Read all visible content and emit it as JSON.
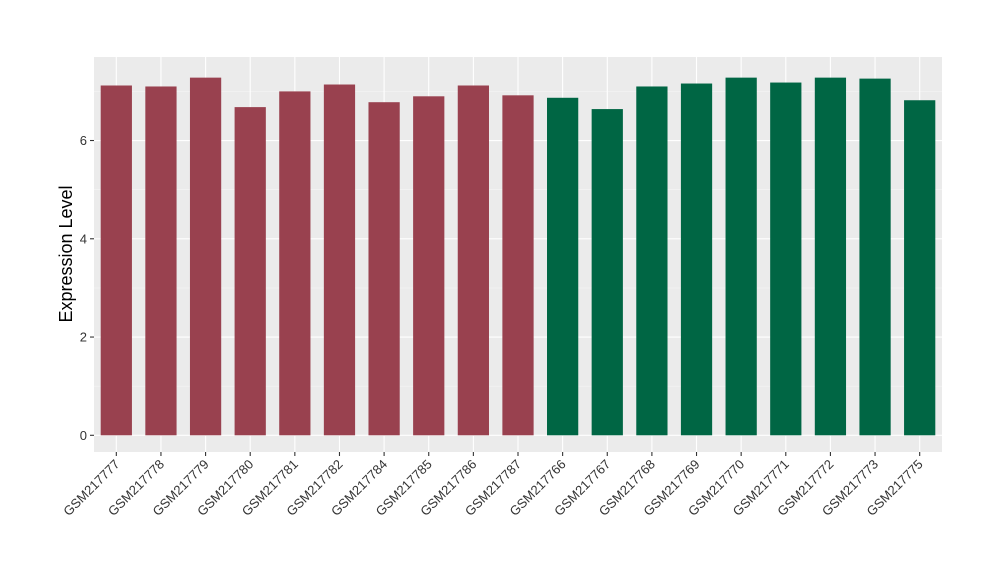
{
  "chart_data": {
    "type": "bar",
    "title": "",
    "xlabel": "",
    "ylabel": "Expression Level",
    "ylim": [
      -0.34,
      7.7
    ],
    "yticks": [
      0,
      2,
      4,
      6
    ],
    "ytick_labels": [
      "0",
      "2",
      "4",
      "6"
    ],
    "grid": true,
    "legend": "none",
    "categories": [
      "GSM217777",
      "GSM217778",
      "GSM217779",
      "GSM217780",
      "GSM217781",
      "GSM217782",
      "GSM217784",
      "GSM217785",
      "GSM217786",
      "GSM217787",
      "GSM217766",
      "GSM217767",
      "GSM217768",
      "GSM217769",
      "GSM217770",
      "GSM217771",
      "GSM217772",
      "GSM217773",
      "GSM217775"
    ],
    "values": [
      7.12,
      7.1,
      7.28,
      6.68,
      7.0,
      7.14,
      6.78,
      6.9,
      7.12,
      6.92,
      6.87,
      6.64,
      7.1,
      7.16,
      7.28,
      7.18,
      7.28,
      7.26,
      6.82
    ],
    "bar_colors": [
      "#99414f",
      "#99414f",
      "#99414f",
      "#99414f",
      "#99414f",
      "#99414f",
      "#99414f",
      "#99414f",
      "#99414f",
      "#99414f",
      "#006644",
      "#006644",
      "#006644",
      "#006644",
      "#006644",
      "#006644",
      "#006644",
      "#006644",
      "#006644"
    ]
  },
  "colors": {
    "panel_background": "#ebebeb",
    "gridline": "#ffffff",
    "group_1": "#99414f",
    "group_2": "#006644"
  }
}
